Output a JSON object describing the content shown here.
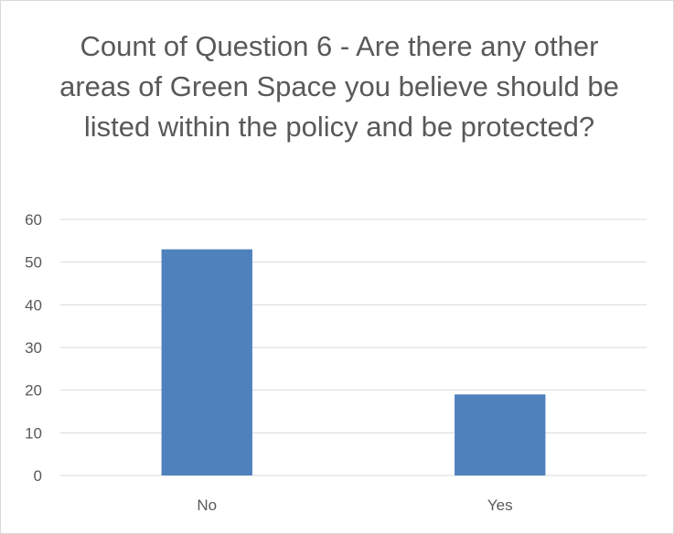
{
  "chart_data": {
    "type": "bar",
    "title": "Count of Question 6 - Are there any other areas of Green Space you believe should be listed within the policy and be protected?",
    "categories": [
      "No",
      "Yes"
    ],
    "values": [
      53,
      19
    ],
    "ylim": [
      0,
      60
    ],
    "yticks": [
      0,
      10,
      20,
      30,
      40,
      50,
      60
    ],
    "grid": true,
    "legend": "none",
    "bar_color": "#4f81bd",
    "grid_color": "#d9d9d9"
  }
}
